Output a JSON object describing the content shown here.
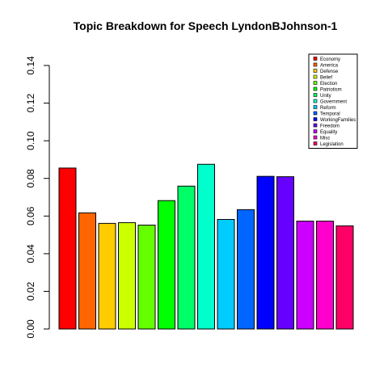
{
  "chart_data": {
    "type": "bar",
    "title": "Topic Breakdown for Speech LyndonBJohnson-1",
    "xlabel": "",
    "ylabel": "",
    "ylim": [
      0,
      0.14
    ],
    "yticks": [
      "0.00",
      "0.02",
      "0.04",
      "0.06",
      "0.08",
      "0.10",
      "0.12",
      "0.14"
    ],
    "categories": [
      "Economy",
      "America",
      "Defense",
      "Belief",
      "Election",
      "Patriotism",
      "Unity",
      "Government",
      "Reform",
      "Temporal",
      "WorkingFamilies",
      "Freedom",
      "Equality",
      "Misc",
      "Legislation"
    ],
    "values": [
      0.0855,
      0.0617,
      0.0561,
      0.0565,
      0.0552,
      0.0682,
      0.0759,
      0.0875,
      0.0582,
      0.0634,
      0.0811,
      0.0809,
      0.0573,
      0.0573,
      0.0548
    ],
    "colors": [
      "#FF0000",
      "#FF6600",
      "#FFCC00",
      "#CCFF00",
      "#66FF00",
      "#00FF00",
      "#00FF66",
      "#00FFCC",
      "#00CCFF",
      "#0066FF",
      "#0000FF",
      "#6600FF",
      "#CC00FF",
      "#FF00CC",
      "#FF0066"
    ],
    "legend_position": "top-right",
    "grid": false
  }
}
